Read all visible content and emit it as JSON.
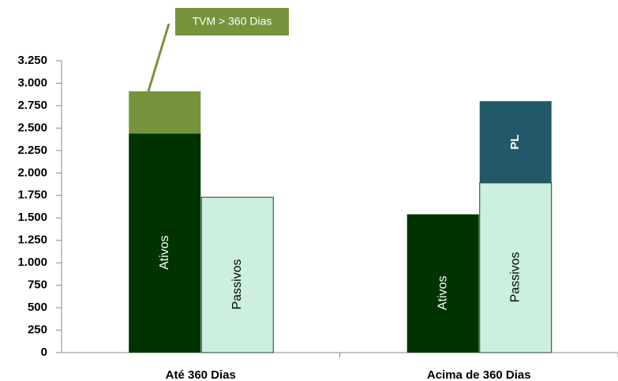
{
  "chart_data": {
    "type": "stacked_bar",
    "ylim": [
      0,
      3250
    ],
    "yticks": [
      0,
      250,
      500,
      750,
      {
        "value": 1000,
        "label": "1.000"
      },
      {
        "value": 1250,
        "label": "1.250"
      },
      {
        "value": 1500,
        "label": "1.500"
      },
      {
        "value": 1750,
        "label": "1.750"
      },
      {
        "value": 2000,
        "label": "2.000"
      },
      {
        "value": 2250,
        "label": "2.250"
      },
      {
        "value": 2500,
        "label": "2.500"
      },
      {
        "value": 2750,
        "label": "2.750"
      },
      {
        "value": 3000,
        "label": "3.000"
      },
      {
        "value": 3250,
        "label": "3.250"
      }
    ],
    "groups": [
      {
        "category": "Até 360 Dias",
        "bars": [
          {
            "segments": [
              {
                "label": "Ativos",
                "value": 2440,
                "color": "#003300",
                "label_position": "inside"
              },
              {
                "label": "TVM > 360 Dias",
                "value": 470,
                "color": "#77933c",
                "label_position": "callout"
              }
            ]
          },
          {
            "segments": [
              {
                "label": "Passivos",
                "value": 1730,
                "color": "#ccefdf",
                "label_position": "inside"
              }
            ]
          }
        ]
      },
      {
        "category": "Acima de 360 Dias",
        "bars": [
          {
            "segments": [
              {
                "label": "Ativos",
                "value": 1540,
                "color": "#003300",
                "label_position": "inside"
              }
            ]
          },
          {
            "segments": [
              {
                "label": "Passivos",
                "value": 1890,
                "color": "#ccefdf",
                "label_position": "inside"
              },
              {
                "label": "PL",
                "value": 910,
                "color": "#215968",
                "label_position": "inside_bold"
              }
            ]
          }
        ]
      }
    ]
  }
}
